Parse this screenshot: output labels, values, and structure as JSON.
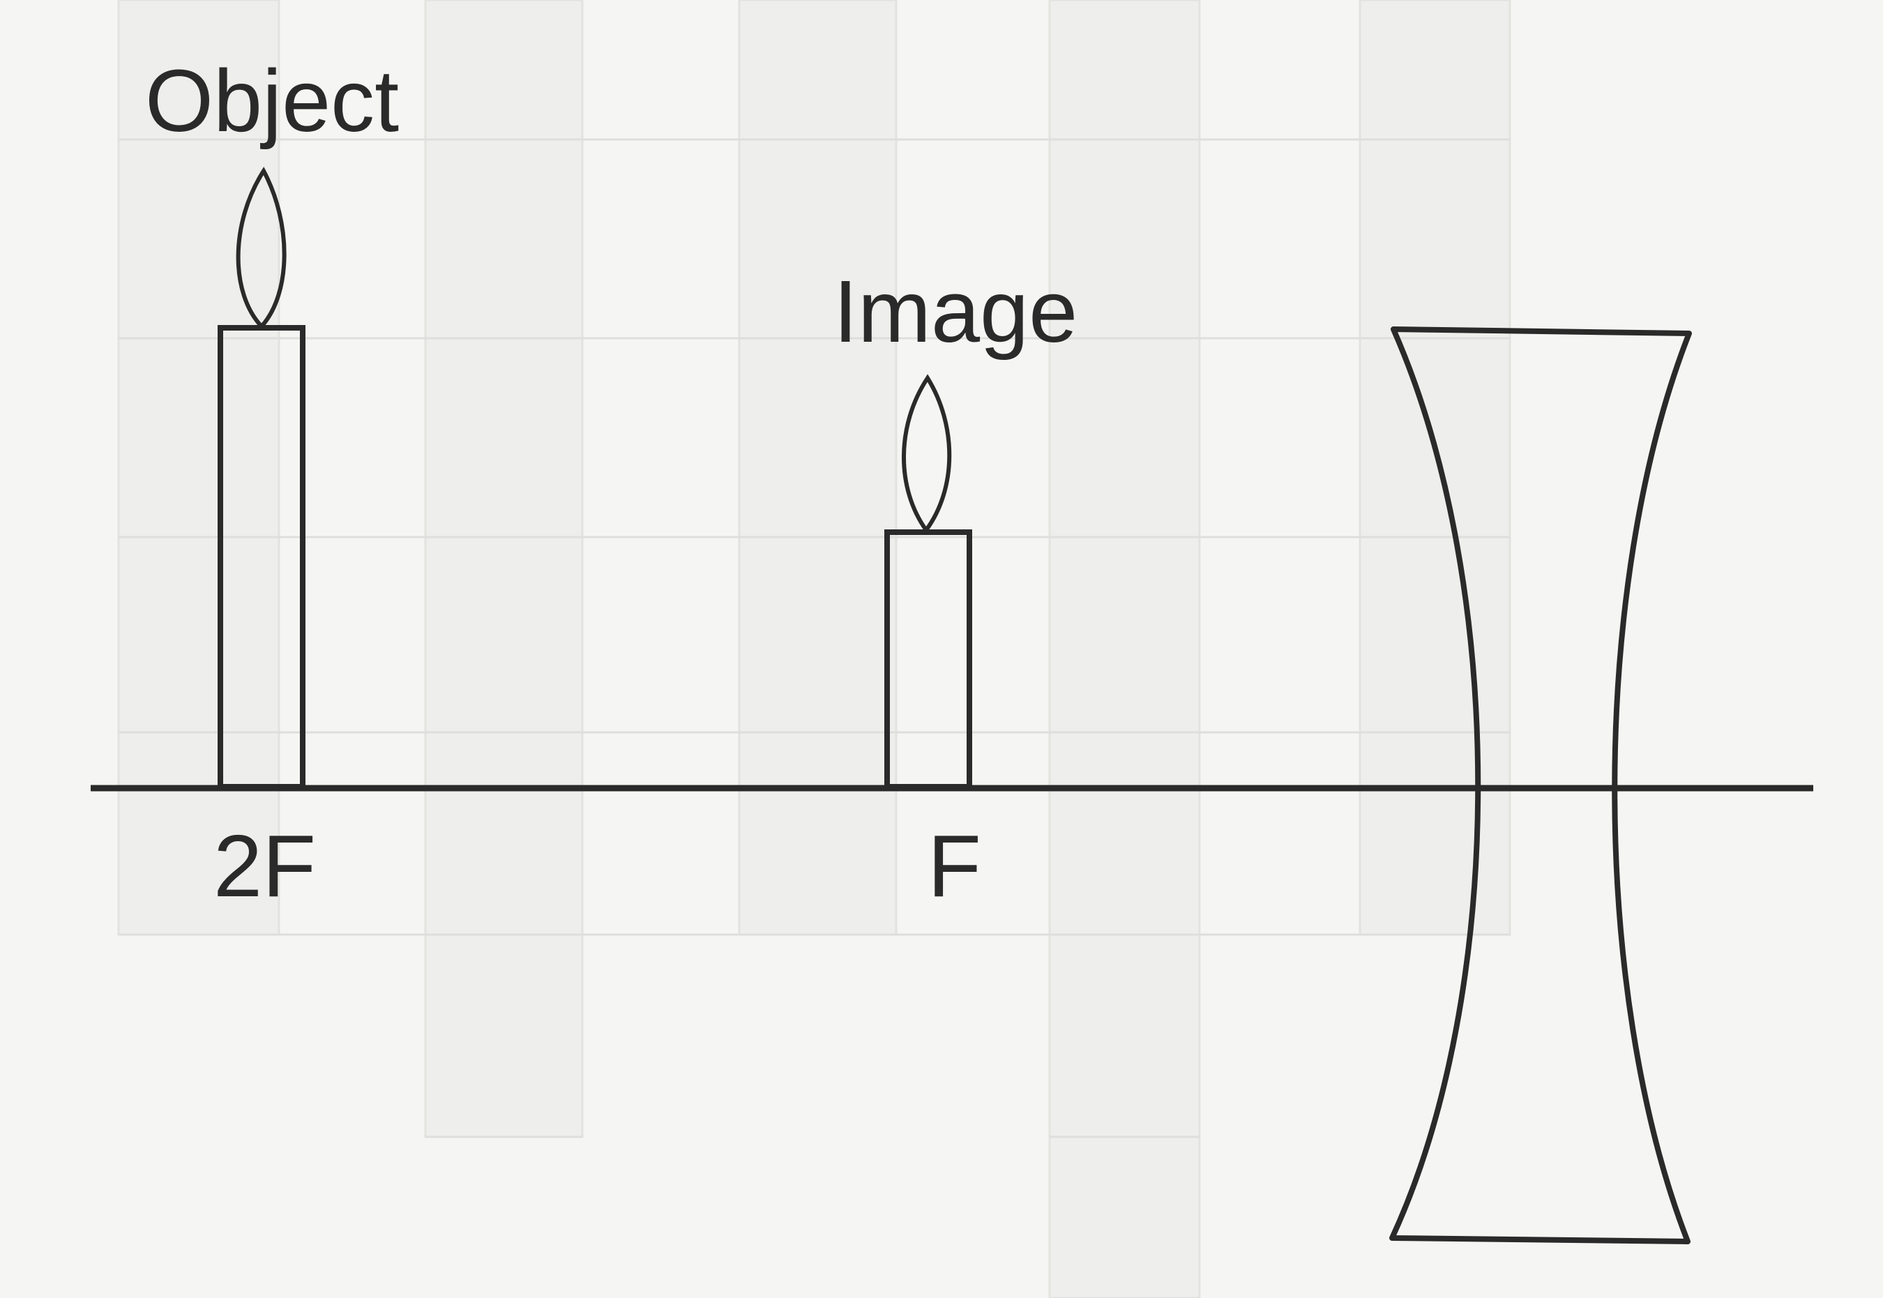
{
  "labels": {
    "object": "Object",
    "image": "Image",
    "two_f": "2F",
    "f": "F"
  },
  "colors": {
    "ink": "#2a2a2a",
    "paper": "#f5f5f3",
    "grid": "#e2e2df"
  }
}
